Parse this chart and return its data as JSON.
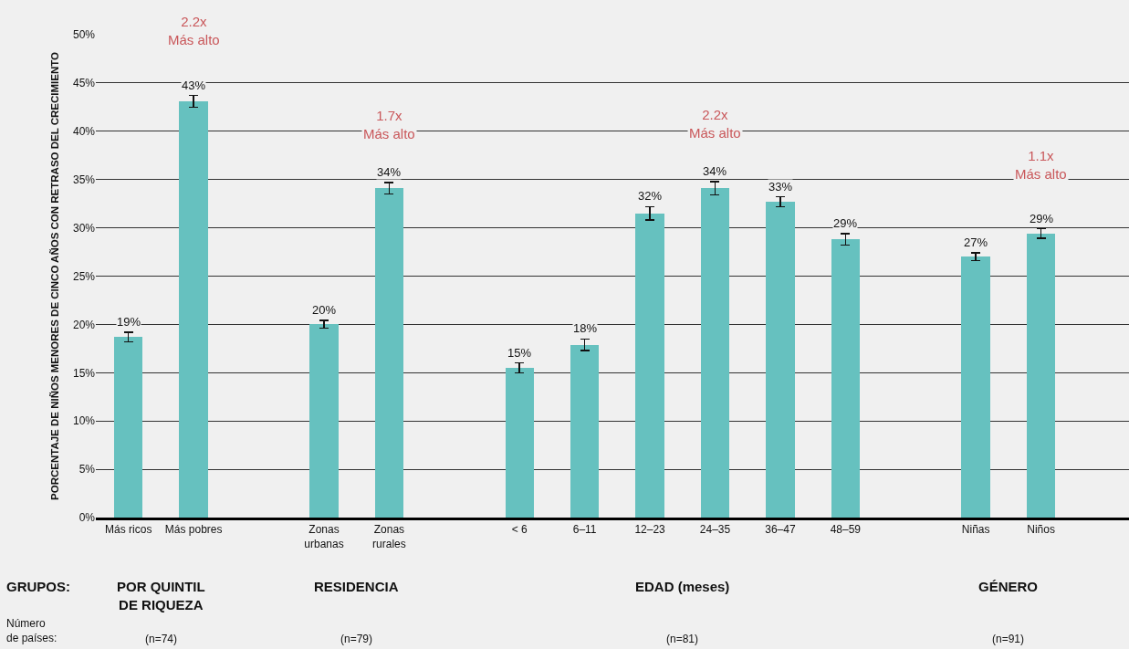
{
  "chart_data": {
    "type": "bar",
    "ylabel": "PORCENTAJE DE NIÑOS MENORES DE CINCO AÑOS CON RETRASO DEL CRECIMIENTO",
    "categories": [
      "Más ricos",
      "Más pobres",
      null,
      "Zonas\nurbanas",
      "Zonas\nrurales",
      null,
      "< 6",
      "6–11",
      "12–23",
      "24–35",
      "36–47",
      "48–59",
      null,
      "Niñas",
      "Niños"
    ],
    "values": [
      18.7,
      43.1,
      null,
      20.0,
      34.1,
      null,
      15.5,
      17.9,
      31.5,
      34.1,
      32.7,
      28.8,
      null,
      27.0,
      29.4
    ],
    "errors": [
      0.5,
      0.6,
      null,
      0.4,
      0.6,
      null,
      0.5,
      0.6,
      0.7,
      0.7,
      0.5,
      0.6,
      null,
      0.4,
      0.5
    ],
    "value_labels": [
      "19%",
      "43%",
      null,
      "20%",
      "34%",
      null,
      "15%",
      "18%",
      "32%",
      "34%",
      "33%",
      "29%",
      null,
      "27%",
      "29%"
    ],
    "color": "#66c1bf",
    "ylim": [
      0,
      50
    ],
    "yticks": [
      {
        "value": 0,
        "label": "0%"
      },
      {
        "value": 5,
        "label": "5%"
      },
      {
        "value": 10,
        "label": "10%"
      },
      {
        "value": 15,
        "label": "15%"
      },
      {
        "value": 20,
        "label": "20%"
      },
      {
        "value": 25,
        "label": "25%"
      },
      {
        "value": 30,
        "label": "30%"
      },
      {
        "value": 35,
        "label": "35%"
      },
      {
        "value": 40,
        "label": "40%"
      },
      {
        "value": 45,
        "label": "45%"
      },
      {
        "value": 50,
        "label": "50%"
      }
    ],
    "grid": "y",
    "annotations": [
      "2.2x\nMás alto",
      "1.7x\nMás alto",
      "2.2x\nMás alto",
      "1.1x\nMás alto",
      "GRUPOS:",
      "POR QUINTIL\nDE RIQUEZA",
      "RESIDENCIA",
      "EDAD (meses)",
      "GÉNERO",
      "Número\nde países:",
      "(n=74)",
      "(n=79)",
      "(n=81)",
      "(n=91)"
    ]
  }
}
